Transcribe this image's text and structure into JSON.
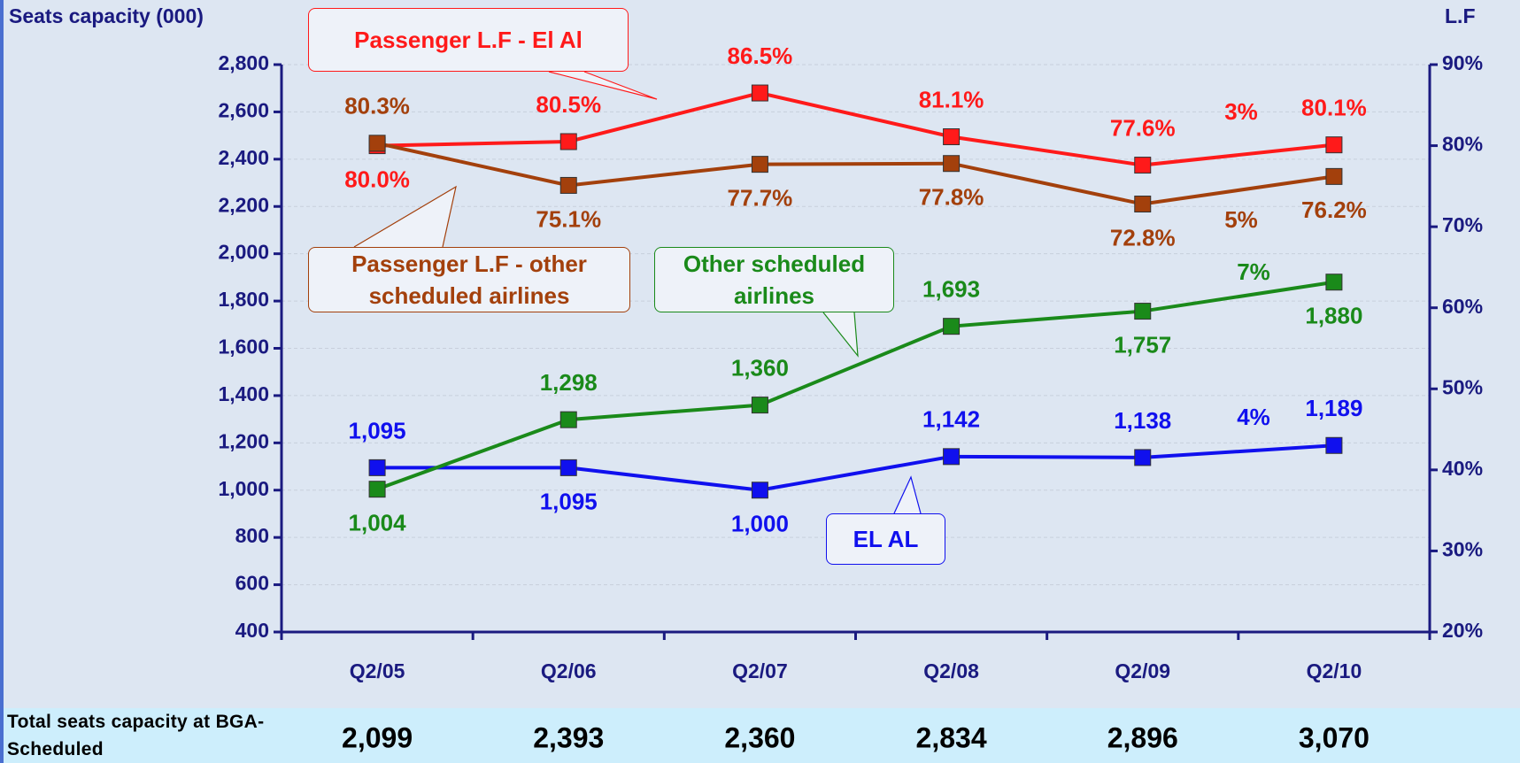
{
  "chart_data": {
    "type": "line",
    "y_axis_label": "Seats capacity (000)",
    "y2_axis_label": "L.F",
    "categories": [
      "Q2/05",
      "Q2/06",
      "Q2/07",
      "Q2/08",
      "Q2/09",
      "Q2/10"
    ],
    "ylim": [
      400,
      2800
    ],
    "yticks": [
      400,
      600,
      800,
      {
        "value": 1000,
        "label": "1,000"
      },
      {
        "value": 1200,
        "label": "1,200"
      },
      {
        "value": 1400,
        "label": "1,400"
      },
      {
        "value": 1600,
        "label": "1,600"
      },
      {
        "value": 1800,
        "label": "1,800"
      },
      {
        "value": 2000,
        "label": "2,000"
      },
      {
        "value": 2200,
        "label": "2,200"
      },
      {
        "value": 2400,
        "label": "2,400"
      },
      {
        "value": 2600,
        "label": "2,600"
      },
      {
        "value": 2800,
        "label": "2,800"
      }
    ],
    "y2lim": [
      20,
      90
    ],
    "y2ticks": [
      {
        "value": 20,
        "label": "20%"
      },
      {
        "value": 30,
        "label": "30%"
      },
      {
        "value": 40,
        "label": "40%"
      },
      {
        "value": 50,
        "label": "50%"
      },
      {
        "value": 60,
        "label": "60%"
      },
      {
        "value": 70,
        "label": "70%"
      },
      {
        "value": 80,
        "label": "80%"
      },
      {
        "value": 90,
        "label": "90%"
      }
    ],
    "grid": true,
    "series": [
      {
        "name": "EL AL",
        "color": "#1010ee",
        "values": [
          1095,
          1095,
          1000,
          1142,
          1138,
          1189
        ],
        "value_labels": [
          "1,095",
          "1,095",
          "1,000",
          "1,142",
          "1,138",
          "1,189"
        ]
      },
      {
        "name": "Other scheduled airlines",
        "color": "#1a8a1a",
        "values": [
          1004,
          1298,
          1360,
          1693,
          1757,
          1880
        ],
        "value_labels": [
          "1,004",
          "1,298",
          "1,360",
          "1,693",
          "1,757",
          "1,880"
        ]
      },
      {
        "name": "Passenger L.F - El Al",
        "color": "#ff1a1a",
        "axis": "y2",
        "values": [
          80.0,
          80.5,
          86.5,
          81.1,
          77.6,
          80.1
        ],
        "value_labels": [
          "80.0%",
          "80.5%",
          "86.5%",
          "81.1%",
          "77.6%",
          "80.1%"
        ]
      },
      {
        "name": "Passenger L.F - other scheduled airlines",
        "color": "#a3400c",
        "axis": "y2",
        "values": [
          80.3,
          75.1,
          77.7,
          77.8,
          72.8,
          76.2
        ],
        "value_labels": [
          "80.3%",
          "75.1%",
          "77.7%",
          "77.8%",
          "72.8%",
          "76.2%"
        ]
      }
    ],
    "annotations": [
      {
        "text": "3%",
        "color": "#ff1a1a"
      },
      {
        "text": "5%",
        "color": "#a3400c"
      },
      {
        "text": "7%",
        "color": "#1a8a1a"
      },
      {
        "text": "4%",
        "color": "#1010ee"
      }
    ],
    "table": {
      "label": "Total seats capacity at BGA-Scheduled",
      "values": [
        "2,099",
        "2,393",
        "2,360",
        "2,834",
        "2,896",
        "3,070"
      ]
    }
  }
}
